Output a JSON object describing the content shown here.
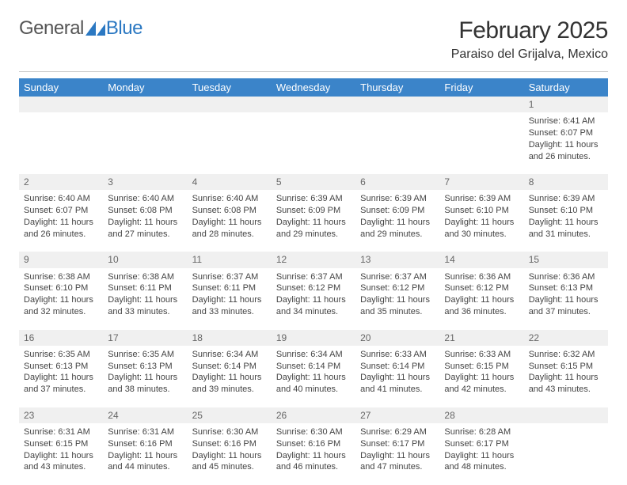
{
  "logo": {
    "text1": "General",
    "text2": "Blue",
    "icon_color": "#2b78c2",
    "text1_color": "#555555",
    "text2_color": "#2b78c2"
  },
  "title": "February 2025",
  "location": "Paraiso del Grijalva, Mexico",
  "colors": {
    "header_bg": "#3b84c9",
    "header_text": "#ffffff",
    "daynum_bg": "#f0f0f0",
    "daynum_text": "#666666",
    "body_text": "#444444",
    "page_bg": "#ffffff",
    "rule": "#cccccc"
  },
  "fonts": {
    "title_size": 30,
    "location_size": 16,
    "dayheader_size": 13,
    "cell_size": 11
  },
  "day_headers": [
    "Sunday",
    "Monday",
    "Tuesday",
    "Wednesday",
    "Thursday",
    "Friday",
    "Saturday"
  ],
  "weeks": [
    [
      null,
      null,
      null,
      null,
      null,
      null,
      {
        "n": "1",
        "lines": [
          "Sunrise: 6:41 AM",
          "Sunset: 6:07 PM",
          "Daylight: 11 hours and 26 minutes."
        ]
      }
    ],
    [
      {
        "n": "2",
        "lines": [
          "Sunrise: 6:40 AM",
          "Sunset: 6:07 PM",
          "Daylight: 11 hours and 26 minutes."
        ]
      },
      {
        "n": "3",
        "lines": [
          "Sunrise: 6:40 AM",
          "Sunset: 6:08 PM",
          "Daylight: 11 hours and 27 minutes."
        ]
      },
      {
        "n": "4",
        "lines": [
          "Sunrise: 6:40 AM",
          "Sunset: 6:08 PM",
          "Daylight: 11 hours and 28 minutes."
        ]
      },
      {
        "n": "5",
        "lines": [
          "Sunrise: 6:39 AM",
          "Sunset: 6:09 PM",
          "Daylight: 11 hours and 29 minutes."
        ]
      },
      {
        "n": "6",
        "lines": [
          "Sunrise: 6:39 AM",
          "Sunset: 6:09 PM",
          "Daylight: 11 hours and 29 minutes."
        ]
      },
      {
        "n": "7",
        "lines": [
          "Sunrise: 6:39 AM",
          "Sunset: 6:10 PM",
          "Daylight: 11 hours and 30 minutes."
        ]
      },
      {
        "n": "8",
        "lines": [
          "Sunrise: 6:39 AM",
          "Sunset: 6:10 PM",
          "Daylight: 11 hours and 31 minutes."
        ]
      }
    ],
    [
      {
        "n": "9",
        "lines": [
          "Sunrise: 6:38 AM",
          "Sunset: 6:10 PM",
          "Daylight: 11 hours and 32 minutes."
        ]
      },
      {
        "n": "10",
        "lines": [
          "Sunrise: 6:38 AM",
          "Sunset: 6:11 PM",
          "Daylight: 11 hours and 33 minutes."
        ]
      },
      {
        "n": "11",
        "lines": [
          "Sunrise: 6:37 AM",
          "Sunset: 6:11 PM",
          "Daylight: 11 hours and 33 minutes."
        ]
      },
      {
        "n": "12",
        "lines": [
          "Sunrise: 6:37 AM",
          "Sunset: 6:12 PM",
          "Daylight: 11 hours and 34 minutes."
        ]
      },
      {
        "n": "13",
        "lines": [
          "Sunrise: 6:37 AM",
          "Sunset: 6:12 PM",
          "Daylight: 11 hours and 35 minutes."
        ]
      },
      {
        "n": "14",
        "lines": [
          "Sunrise: 6:36 AM",
          "Sunset: 6:12 PM",
          "Daylight: 11 hours and 36 minutes."
        ]
      },
      {
        "n": "15",
        "lines": [
          "Sunrise: 6:36 AM",
          "Sunset: 6:13 PM",
          "Daylight: 11 hours and 37 minutes."
        ]
      }
    ],
    [
      {
        "n": "16",
        "lines": [
          "Sunrise: 6:35 AM",
          "Sunset: 6:13 PM",
          "Daylight: 11 hours and 37 minutes."
        ]
      },
      {
        "n": "17",
        "lines": [
          "Sunrise: 6:35 AM",
          "Sunset: 6:13 PM",
          "Daylight: 11 hours and 38 minutes."
        ]
      },
      {
        "n": "18",
        "lines": [
          "Sunrise: 6:34 AM",
          "Sunset: 6:14 PM",
          "Daylight: 11 hours and 39 minutes."
        ]
      },
      {
        "n": "19",
        "lines": [
          "Sunrise: 6:34 AM",
          "Sunset: 6:14 PM",
          "Daylight: 11 hours and 40 minutes."
        ]
      },
      {
        "n": "20",
        "lines": [
          "Sunrise: 6:33 AM",
          "Sunset: 6:14 PM",
          "Daylight: 11 hours and 41 minutes."
        ]
      },
      {
        "n": "21",
        "lines": [
          "Sunrise: 6:33 AM",
          "Sunset: 6:15 PM",
          "Daylight: 11 hours and 42 minutes."
        ]
      },
      {
        "n": "22",
        "lines": [
          "Sunrise: 6:32 AM",
          "Sunset: 6:15 PM",
          "Daylight: 11 hours and 43 minutes."
        ]
      }
    ],
    [
      {
        "n": "23",
        "lines": [
          "Sunrise: 6:31 AM",
          "Sunset: 6:15 PM",
          "Daylight: 11 hours and 43 minutes."
        ]
      },
      {
        "n": "24",
        "lines": [
          "Sunrise: 6:31 AM",
          "Sunset: 6:16 PM",
          "Daylight: 11 hours and 44 minutes."
        ]
      },
      {
        "n": "25",
        "lines": [
          "Sunrise: 6:30 AM",
          "Sunset: 6:16 PM",
          "Daylight: 11 hours and 45 minutes."
        ]
      },
      {
        "n": "26",
        "lines": [
          "Sunrise: 6:30 AM",
          "Sunset: 6:16 PM",
          "Daylight: 11 hours and 46 minutes."
        ]
      },
      {
        "n": "27",
        "lines": [
          "Sunrise: 6:29 AM",
          "Sunset: 6:17 PM",
          "Daylight: 11 hours and 47 minutes."
        ]
      },
      {
        "n": "28",
        "lines": [
          "Sunrise: 6:28 AM",
          "Sunset: 6:17 PM",
          "Daylight: 11 hours and 48 minutes."
        ]
      },
      null
    ]
  ]
}
